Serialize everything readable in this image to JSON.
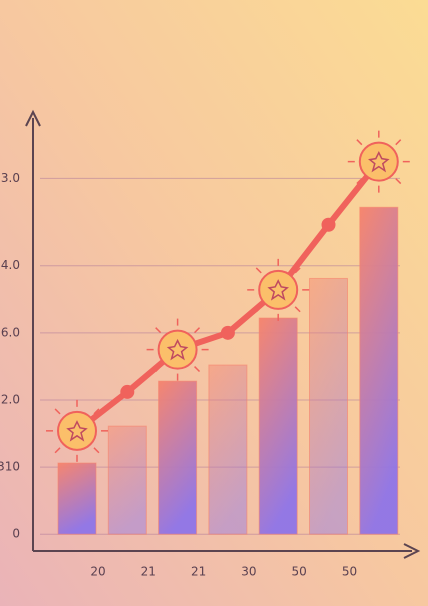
{
  "chart_data": {
    "type": "bar",
    "categories": [
      "20",
      "21",
      "21",
      "30",
      "50",
      "50",
      null
    ],
    "ylim": [
      -0.25,
      6.2
    ],
    "yticks": [
      0,
      {
        "value": 1,
        "label": "310"
      },
      {
        "value": 2,
        "label": "2.0"
      },
      {
        "value": 3,
        "label": "6.0"
      },
      {
        "value": 4,
        "label": "4.0"
      },
      {
        "value": 5.3,
        "label": "3.0"
      }
    ],
    "grid": true,
    "series": [
      {
        "type": "bar",
        "color": "#f6836c",
        "values": [
          1.06,
          1.61,
          2.28,
          2.52,
          3.22,
          3.81,
          4.87
        ]
      },
      {
        "type": "line",
        "color": "#f0625c",
        "values": [
          1.54,
          2.12,
          2.75,
          3.0,
          3.64,
          4.61,
          5.55
        ]
      }
    ]
  }
}
